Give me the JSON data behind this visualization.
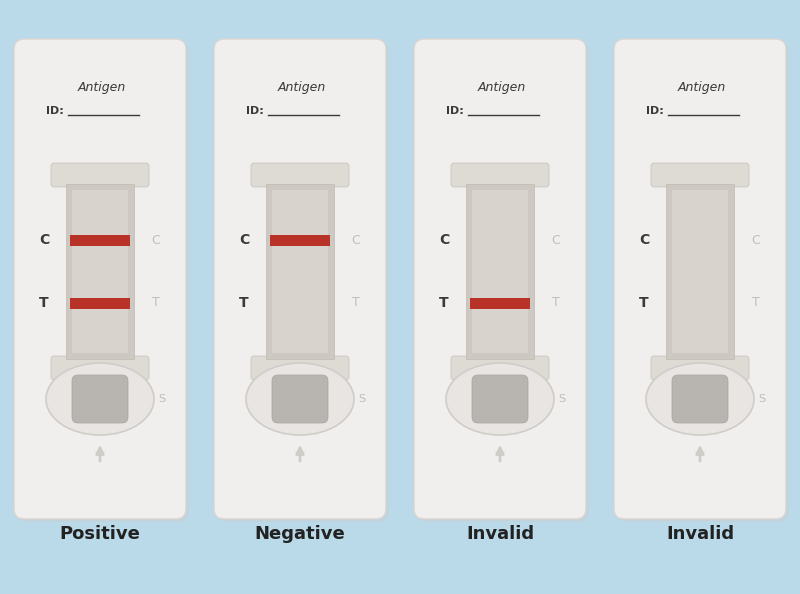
{
  "background_color": "#bad9e9",
  "cassette_face": "#f0efee",
  "cassette_edge": "#d8d5d2",
  "window_bg": "#cdc9c2",
  "window_inner": "#d8d4cd",
  "red_line": "#b83228",
  "text_dark": "#3a3a3a",
  "text_faint": "#c0bdb8",
  "well_outer": "#e8e5e2",
  "well_inner": "#b8b5b0",
  "arrow_color": "#d0ccc8",
  "label_color": "#222222",
  "cases": [
    "Positive",
    "Negative",
    "Invalid",
    "Invalid"
  ],
  "case_configs": [
    {
      "C_line": true,
      "T_line": true
    },
    {
      "C_line": true,
      "T_line": false
    },
    {
      "C_line": false,
      "T_line": true
    },
    {
      "C_line": false,
      "T_line": false
    }
  ],
  "n_cassettes": 4
}
